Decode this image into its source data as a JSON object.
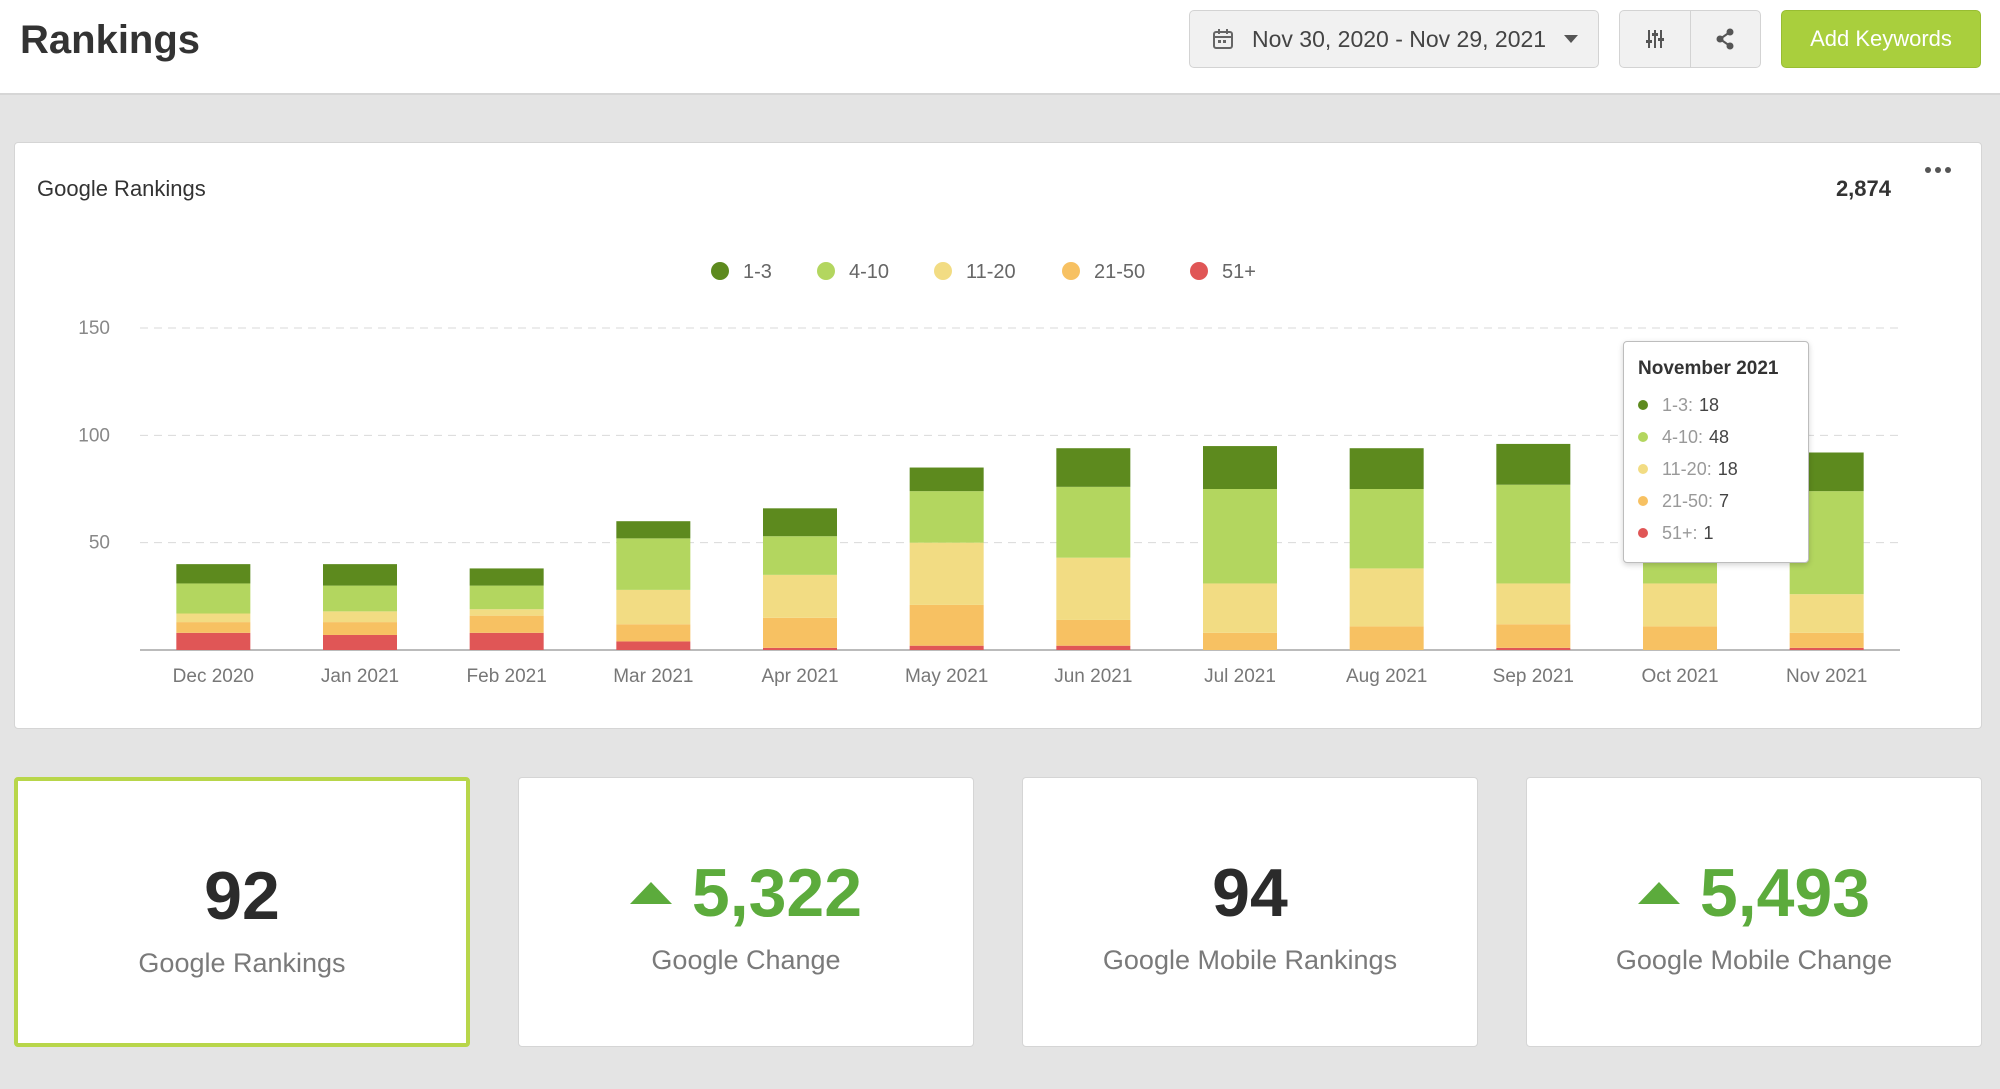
{
  "header": {
    "title": "Rankings",
    "date_range": "Nov 30, 2020 - Nov 29, 2021",
    "filter_icon": "sliders-icon",
    "share_icon": "share-icon",
    "add_keywords_label": "Add Keywords",
    "accent_color": "#a9cf3d"
  },
  "chart_card": {
    "title": "Google Rankings",
    "total": "2,874",
    "tooltip": {
      "title": "November 2021",
      "rows": [
        {
          "label": "1-3:",
          "value": "18",
          "color": "#5d8a1e"
        },
        {
          "label": "4-10:",
          "value": "48",
          "color": "#b3d65f"
        },
        {
          "label": "11-20:",
          "value": "18",
          "color": "#f2dc83"
        },
        {
          "label": "21-50:",
          "value": "7",
          "color": "#f7c162"
        },
        {
          "label": "51+:",
          "value": "1",
          "color": "#e05656"
        }
      ]
    }
  },
  "chart_data": {
    "type": "bar",
    "stacked": true,
    "title": "Google Rankings",
    "categories": [
      "Dec 2020",
      "Jan 2021",
      "Feb 2021",
      "Mar 2021",
      "Apr 2021",
      "May 2021",
      "Jun 2021",
      "Jul 2021",
      "Aug 2021",
      "Sep 2021",
      "Oct 2021",
      "Nov 2021"
    ],
    "ylim": [
      0,
      150
    ],
    "yticks": [
      50,
      100,
      150
    ],
    "grid": true,
    "legend_position": "top-center",
    "series": [
      {
        "name": "51+",
        "color": "#e05656",
        "values": [
          8,
          7,
          8,
          4,
          1,
          2,
          2,
          0,
          0,
          1,
          0,
          1
        ]
      },
      {
        "name": "21-50",
        "color": "#f7c162",
        "values": [
          5,
          6,
          8,
          8,
          14,
          19,
          12,
          8,
          11,
          11,
          11,
          7
        ]
      },
      {
        "name": "11-20",
        "color": "#f2dc83",
        "values": [
          4,
          5,
          3,
          16,
          20,
          29,
          29,
          23,
          27,
          19,
          20,
          18
        ]
      },
      {
        "name": "4-10",
        "color": "#b3d65f",
        "values": [
          14,
          12,
          11,
          24,
          18,
          24,
          33,
          44,
          37,
          46,
          51,
          48
        ]
      },
      {
        "name": "1-3",
        "color": "#5d8a1e",
        "values": [
          9,
          10,
          8,
          8,
          13,
          11,
          18,
          20,
          19,
          19,
          19,
          18
        ]
      }
    ],
    "legend_order": [
      "1-3",
      "4-10",
      "11-20",
      "21-50",
      "51+"
    ]
  },
  "stats": [
    {
      "value": "92",
      "label": "Google Rankings",
      "trend": "",
      "selected": true
    },
    {
      "value": "5,322",
      "label": "Google Change",
      "trend": "up",
      "selected": false
    },
    {
      "value": "94",
      "label": "Google Mobile Rankings",
      "trend": "",
      "selected": false
    },
    {
      "value": "5,493",
      "label": "Google Mobile Change",
      "trend": "up",
      "selected": false
    }
  ]
}
